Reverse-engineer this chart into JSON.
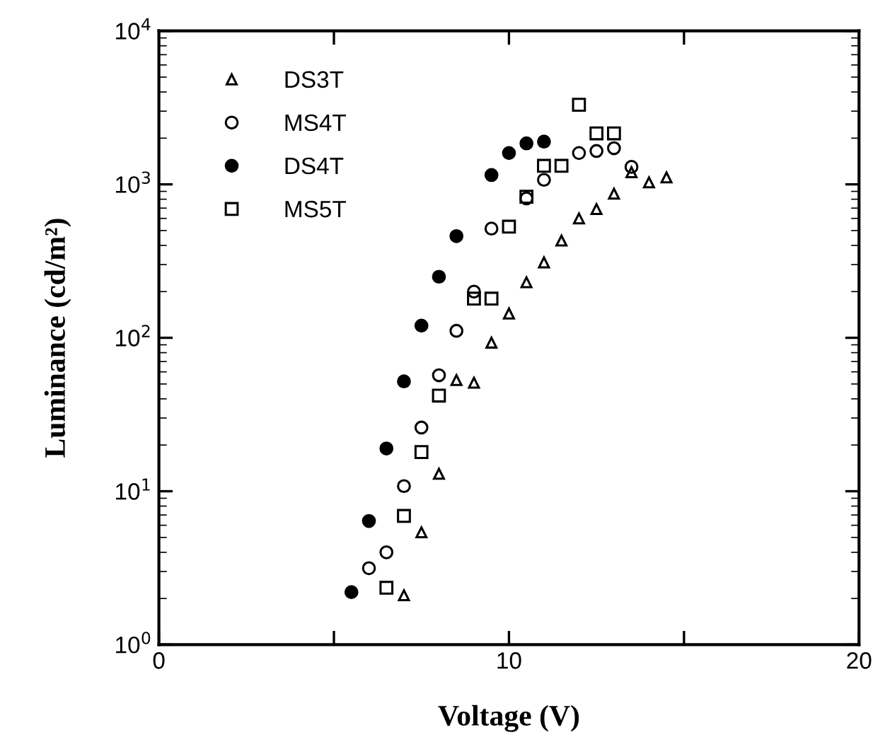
{
  "chart_data": {
    "type": "scatter",
    "xlabel": "Voltage (V)",
    "ylabel": "Luminance (cd/m²)",
    "xlim": [
      0,
      20
    ],
    "xticks": [
      0,
      {
        "value": 5,
        "label": null
      },
      10,
      {
        "value": 15,
        "label": null
      },
      20
    ],
    "ylim": [
      1,
      10000
    ],
    "log": "y",
    "yticks": [
      {
        "value": 1,
        "label": "10$^{0}$"
      },
      {
        "value": 10,
        "label": "10$^{1}$"
      },
      {
        "value": 100,
        "label": "10$^{2}$"
      },
      {
        "value": 1000,
        "label": "10$^{3}$"
      },
      {
        "value": 10000,
        "label": "10$^{4}$"
      }
    ],
    "grid": false,
    "legend": "top left",
    "series": [
      {
        "name": "DS3T",
        "color": "#000000",
        "marker": "triangle",
        "x": [
          7,
          7.5,
          8,
          8.5,
          9,
          9.5,
          10,
          10.5,
          11,
          11.5,
          12,
          12.5,
          13,
          13.5,
          14,
          14.5
        ],
        "values": [
          2.1,
          5.4,
          13,
          53,
          51,
          93,
          144,
          230,
          310,
          430,
          600,
          690,
          870,
          1200,
          1030,
          1110
        ]
      },
      {
        "name": "MS4T",
        "color": "#000000",
        "marker": "circle",
        "x": [
          6,
          6.5,
          7,
          7.5,
          8,
          8.5,
          9,
          9.5,
          10.5,
          11,
          12,
          12.5,
          13,
          13.5
        ],
        "values": [
          3.15,
          4.0,
          10.8,
          26,
          57,
          111,
          200,
          515,
          810,
          1070,
          1600,
          1650,
          1720,
          1300
        ]
      },
      {
        "name": "DS4T",
        "color": "#000000",
        "marker": "circle",
        "x": [
          5.5,
          6,
          6.5,
          7,
          7.5,
          8,
          8.5,
          9.5,
          10,
          10.5,
          11
        ],
        "values": [
          2.2,
          6.4,
          19,
          52,
          120,
          250,
          460,
          1150,
          1600,
          1850,
          1900
        ]
      },
      {
        "name": "MS5T",
        "color": "#000000",
        "marker": "square",
        "x": [
          6.5,
          7,
          7.5,
          8,
          9,
          9.5,
          10,
          10.5,
          11,
          11.5,
          12,
          12.5,
          13
        ],
        "values": [
          2.35,
          6.9,
          18,
          42,
          180,
          180,
          530,
          830,
          1320,
          1320,
          3300,
          2150,
          2150
        ]
      }
    ]
  }
}
